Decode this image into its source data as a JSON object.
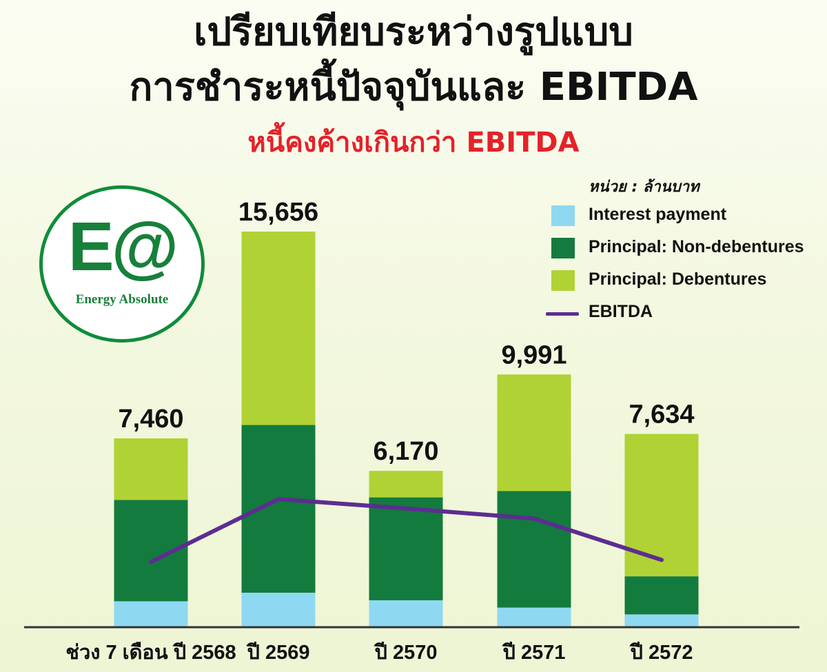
{
  "title_line1": "เปรียบเทียบระหว่างรูปแบบ",
  "title_line2": "การชำระหนี้ปัจจุบันและ EBITDA",
  "subtitle": "หนี้คงค้างเกินกว่า EBITDA",
  "unit_label": "หน่วย : ล้านบาท",
  "logo": {
    "mark": "E@",
    "name": "Energy Absolute"
  },
  "legend": [
    {
      "label": "Interest payment",
      "color": "#8fd8f2",
      "kind": "box"
    },
    {
      "label": "Principal: Non-debentures",
      "color": "#137b3e",
      "kind": "box"
    },
    {
      "label": "Principal: Debentures",
      "color": "#b1d234",
      "kind": "box"
    },
    {
      "label": "EBITDA",
      "color": "#5c2d91",
      "kind": "line"
    }
  ],
  "chart_data": {
    "type": "bar",
    "stacked": true,
    "categories": [
      "ช่วง 7 เดือน ปี 2568",
      "ปี 2569",
      "ปี 2570",
      "ปี 2571",
      "ปี 2572"
    ],
    "totals": [
      "7,460",
      "15,656",
      "6,170",
      "9,991",
      "7,634"
    ],
    "series": [
      {
        "name": "Interest payment",
        "color": "#8fd8f2",
        "values": [
          1000,
          1340,
          1040,
          750,
          480
        ]
      },
      {
        "name": "Principal: Non-debentures",
        "color": "#137b3e",
        "values": [
          4020,
          6650,
          4080,
          4620,
          1510
        ]
      },
      {
        "name": "Principal: Debentures",
        "color": "#b1d234",
        "values": [
          2440,
          7666,
          1050,
          4621,
          5644
        ]
      }
    ],
    "line": {
      "name": "EBITDA",
      "color": "#5c2d91",
      "values": [
        2560,
        5050,
        4680,
        4280,
        2640
      ]
    },
    "ylim": [
      0,
      15656
    ],
    "grid": false,
    "legend_position": "top-right"
  }
}
